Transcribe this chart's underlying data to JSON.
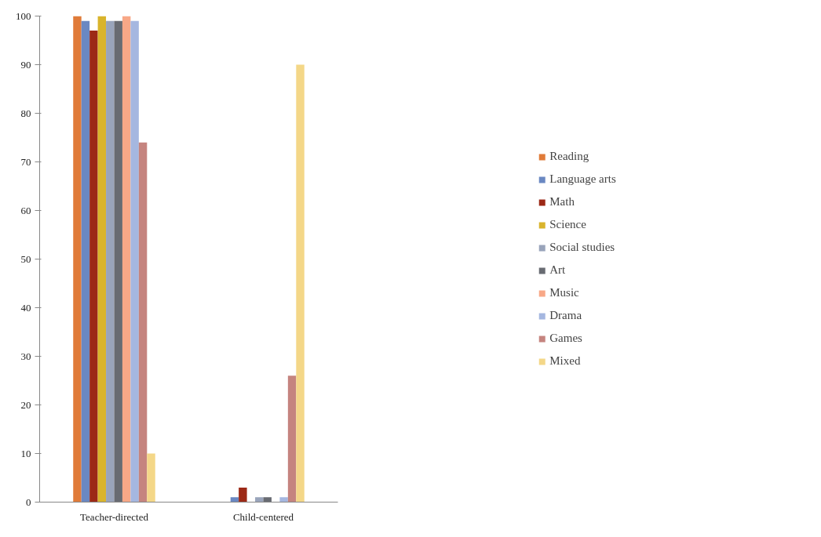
{
  "chart_data": {
    "type": "bar",
    "categories": [
      "Teacher-directed",
      "Child-centered"
    ],
    "series": [
      {
        "name": "Reading",
        "color": "#e07b39",
        "values": [
          100,
          0
        ]
      },
      {
        "name": "Language arts",
        "color": "#6a88c2",
        "values": [
          99,
          1
        ]
      },
      {
        "name": "Math",
        "color": "#9c2916",
        "values": [
          97,
          3
        ]
      },
      {
        "name": "Science",
        "color": "#d9b42c",
        "values": [
          100,
          0
        ]
      },
      {
        "name": "Social studies",
        "color": "#99a4bb",
        "values": [
          99,
          1
        ]
      },
      {
        "name": "Art",
        "color": "#686b72",
        "values": [
          99,
          1
        ]
      },
      {
        "name": "Music",
        "color": "#f8a887",
        "values": [
          100,
          0
        ]
      },
      {
        "name": "Drama",
        "color": "#a5b7e0",
        "values": [
          99,
          1
        ]
      },
      {
        "name": "Games",
        "color": "#c5847f",
        "values": [
          74,
          26
        ]
      },
      {
        "name": "Mixed",
        "color": "#f4d788",
        "values": [
          10,
          90
        ]
      }
    ],
    "ylim": [
      0,
      100
    ],
    "yticks": [
      0,
      10,
      20,
      30,
      40,
      50,
      60,
      70,
      80,
      90,
      100
    ],
    "legend": "right"
  }
}
